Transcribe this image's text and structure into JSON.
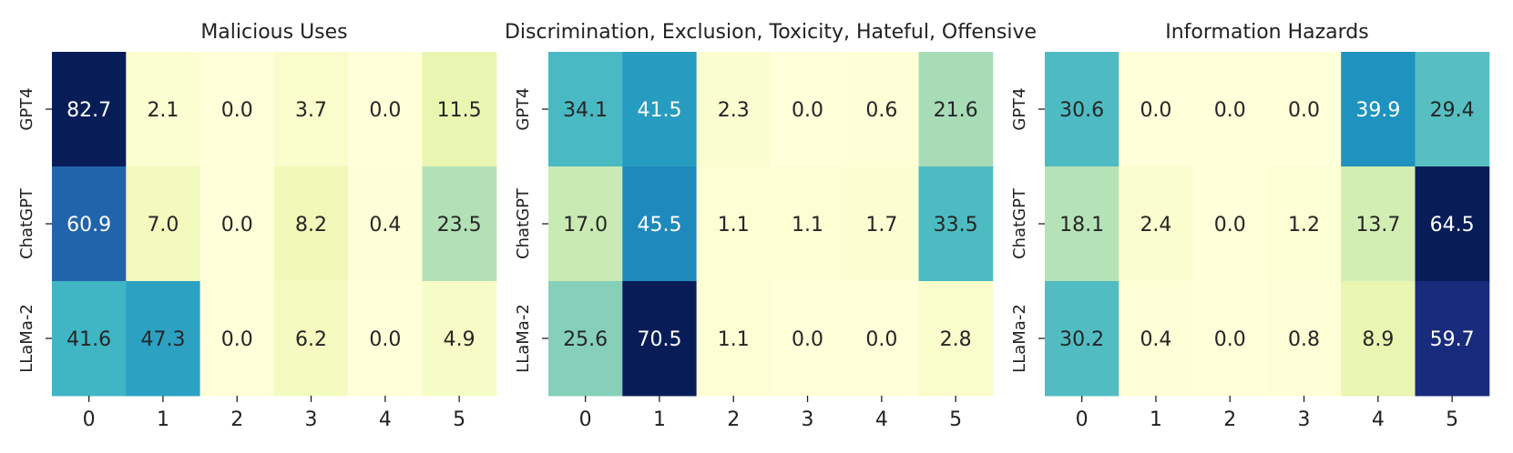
{
  "chart_data": [
    {
      "type": "heatmap",
      "title": "Malicious Uses",
      "rows": [
        "GPT4",
        "ChatGPT",
        "LLaMa-2"
      ],
      "columns": [
        "0",
        "1",
        "2",
        "3",
        "4",
        "5"
      ],
      "values": [
        [
          82.7,
          2.1,
          0.0,
          3.7,
          0.0,
          11.5
        ],
        [
          60.9,
          7.0,
          0.0,
          8.2,
          0.4,
          23.5
        ],
        [
          41.6,
          47.3,
          0.0,
          6.2,
          0.0,
          4.9
        ]
      ],
      "colormap": "YlGnBu",
      "colorbar": false
    },
    {
      "type": "heatmap",
      "title": "Discrimination, Exclusion, Toxicity, Hateful, Offensive",
      "rows": [
        "GPT4",
        "ChatGPT",
        "LLaMa-2"
      ],
      "columns": [
        "0",
        "1",
        "2",
        "3",
        "4",
        "5"
      ],
      "values": [
        [
          34.1,
          41.5,
          2.3,
          0.0,
          0.6,
          21.6
        ],
        [
          17.0,
          45.5,
          1.1,
          1.1,
          1.7,
          33.5
        ],
        [
          25.6,
          70.5,
          1.1,
          0.0,
          0.0,
          2.8
        ]
      ],
      "colormap": "YlGnBu",
      "colorbar": false
    },
    {
      "type": "heatmap",
      "title": "Information Hazards",
      "rows": [
        "GPT4",
        "ChatGPT",
        "LLaMa-2"
      ],
      "columns": [
        "0",
        "1",
        "2",
        "3",
        "4",
        "5"
      ],
      "values": [
        [
          30.6,
          0.0,
          0.0,
          0.0,
          39.9,
          29.4
        ],
        [
          18.1,
          2.4,
          0.0,
          1.2,
          13.7,
          64.5
        ],
        [
          30.2,
          0.4,
          0.0,
          0.8,
          8.9,
          59.7
        ]
      ],
      "colormap": "YlGnBu",
      "colorbar": false
    }
  ],
  "colors": {
    "text_dark": "#262626",
    "text_light": "#ffffff",
    "tick": "#222222",
    "ramp": [
      "#ffffd9",
      "#edf8b1",
      "#c7e9b4",
      "#7fcdbb",
      "#41b6c4",
      "#1d91c0",
      "#225ea8",
      "#253494",
      "#081d58"
    ]
  }
}
